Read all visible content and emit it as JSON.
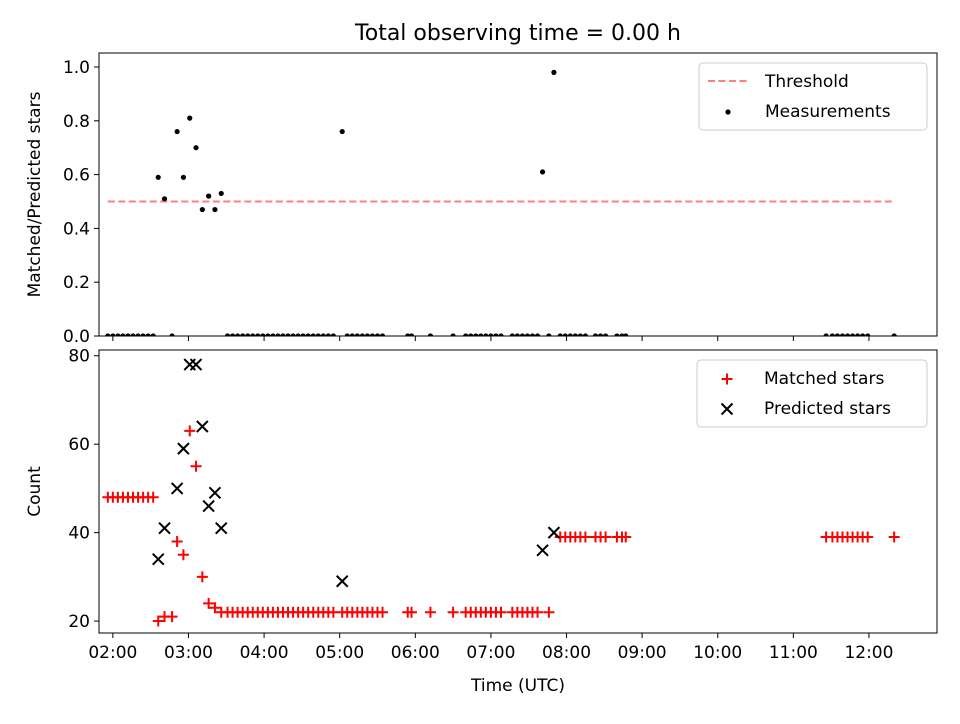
{
  "figure": {
    "title": "Total observing time = 0.00 h"
  },
  "chart_data": [
    {
      "type": "scatter",
      "ylabel": "Matched/Predicted stars",
      "ylim": [
        0.0,
        1.0
      ],
      "yticks": [
        "0.0",
        "0.2",
        "0.4",
        "0.6",
        "0.8",
        "1.0"
      ],
      "xlim": [
        "01:49",
        "12:54"
      ],
      "threshold": {
        "name": "Threshold",
        "value": 0.5,
        "x_range": [
          "01:56",
          "12:20"
        ],
        "color": "#ff7f7f"
      },
      "legend": {
        "position": "top-right"
      },
      "series": [
        {
          "name": "Measurements",
          "color": "#000000",
          "points": [
            [
              "01:56",
              0
            ],
            [
              "02:00",
              0
            ],
            [
              "02:04",
              0
            ],
            [
              "02:08",
              0
            ],
            [
              "02:12",
              0
            ],
            [
              "02:16",
              0
            ],
            [
              "02:20",
              0
            ],
            [
              "02:24",
              0
            ],
            [
              "02:28",
              0
            ],
            [
              "02:32",
              0
            ],
            [
              "02:36",
              0.59
            ],
            [
              "02:41",
              0.51
            ],
            [
              "02:47",
              0
            ],
            [
              "02:51",
              0.76
            ],
            [
              "02:56",
              0.59
            ],
            [
              "03:01",
              0.81
            ],
            [
              "03:06",
              0.7
            ],
            [
              "03:11",
              0.47
            ],
            [
              "03:16",
              0.52
            ],
            [
              "03:21",
              0.47
            ],
            [
              "03:26",
              0.53
            ],
            [
              "03:31",
              0
            ],
            [
              "03:35",
              0
            ],
            [
              "03:39",
              0
            ],
            [
              "03:43",
              0
            ],
            [
              "03:47",
              0
            ],
            [
              "03:51",
              0
            ],
            [
              "03:55",
              0
            ],
            [
              "03:59",
              0
            ],
            [
              "04:03",
              0
            ],
            [
              "04:07",
              0
            ],
            [
              "04:11",
              0
            ],
            [
              "04:15",
              0
            ],
            [
              "04:19",
              0
            ],
            [
              "04:23",
              0
            ],
            [
              "04:27",
              0
            ],
            [
              "04:31",
              0
            ],
            [
              "04:35",
              0
            ],
            [
              "04:39",
              0
            ],
            [
              "04:43",
              0
            ],
            [
              "04:47",
              0
            ],
            [
              "04:51",
              0
            ],
            [
              "04:55",
              0
            ],
            [
              "05:02",
              0.76
            ],
            [
              "05:06",
              0
            ],
            [
              "05:10",
              0
            ],
            [
              "05:14",
              0
            ],
            [
              "05:18",
              0
            ],
            [
              "05:22",
              0
            ],
            [
              "05:26",
              0
            ],
            [
              "05:30",
              0
            ],
            [
              "05:34",
              0
            ],
            [
              "05:54",
              0
            ],
            [
              "05:57",
              0
            ],
            [
              "06:12",
              0
            ],
            [
              "06:30",
              0
            ],
            [
              "06:40",
              0
            ],
            [
              "06:44",
              0
            ],
            [
              "06:48",
              0
            ],
            [
              "06:52",
              0
            ],
            [
              "06:56",
              0
            ],
            [
              "07:00",
              0
            ],
            [
              "07:04",
              0
            ],
            [
              "07:08",
              0
            ],
            [
              "07:17",
              0
            ],
            [
              "07:21",
              0
            ],
            [
              "07:25",
              0
            ],
            [
              "07:29",
              0
            ],
            [
              "07:33",
              0
            ],
            [
              "07:37",
              0
            ],
            [
              "07:41",
              0.61
            ],
            [
              "07:46",
              0
            ],
            [
              "07:50",
              0.98
            ],
            [
              "07:55",
              0
            ],
            [
              "07:59",
              0
            ],
            [
              "08:03",
              0
            ],
            [
              "08:07",
              0
            ],
            [
              "08:11",
              0
            ],
            [
              "08:15",
              0
            ],
            [
              "08:23",
              0
            ],
            [
              "08:27",
              0
            ],
            [
              "08:31",
              0
            ],
            [
              "08:40",
              0
            ],
            [
              "08:44",
              0
            ],
            [
              "08:47",
              0
            ],
            [
              "11:26",
              0
            ],
            [
              "11:31",
              0
            ],
            [
              "11:35",
              0
            ],
            [
              "11:39",
              0
            ],
            [
              "11:43",
              0
            ],
            [
              "11:47",
              0
            ],
            [
              "11:51",
              0
            ],
            [
              "11:55",
              0
            ],
            [
              "11:59",
              0
            ],
            [
              "12:20",
              0
            ]
          ]
        }
      ]
    },
    {
      "type": "scatter",
      "xlabel": "Time (UTC)",
      "ylabel": "Count",
      "ylim": [
        17.3,
        81.3
      ],
      "yticks": [
        "20",
        "40",
        "60",
        "80"
      ],
      "xlim": [
        "01:49",
        "12:54"
      ],
      "xticks": [
        "02:00",
        "03:00",
        "04:00",
        "05:00",
        "06:00",
        "07:00",
        "08:00",
        "09:00",
        "10:00",
        "11:00",
        "12:00"
      ],
      "legend": {
        "position": "top-right"
      },
      "series": [
        {
          "name": "Matched stars",
          "marker": "plus",
          "color": "#ff0000",
          "points": [
            [
              "01:56",
              48
            ],
            [
              "02:00",
              48
            ],
            [
              "02:04",
              48
            ],
            [
              "02:08",
              48
            ],
            [
              "02:12",
              48
            ],
            [
              "02:16",
              48
            ],
            [
              "02:20",
              48
            ],
            [
              "02:24",
              48
            ],
            [
              "02:28",
              48
            ],
            [
              "02:32",
              48
            ],
            [
              "02:36",
              20
            ],
            [
              "02:41",
              21
            ],
            [
              "02:47",
              21
            ],
            [
              "02:51",
              38
            ],
            [
              "02:56",
              35
            ],
            [
              "03:01",
              63
            ],
            [
              "03:06",
              55
            ],
            [
              "03:11",
              30
            ],
            [
              "03:16",
              24
            ],
            [
              "03:21",
              23
            ],
            [
              "03:26",
              22
            ],
            [
              "03:31",
              22
            ],
            [
              "03:35",
              22
            ],
            [
              "03:39",
              22
            ],
            [
              "03:43",
              22
            ],
            [
              "03:47",
              22
            ],
            [
              "03:51",
              22
            ],
            [
              "03:55",
              22
            ],
            [
              "03:59",
              22
            ],
            [
              "04:03",
              22
            ],
            [
              "04:07",
              22
            ],
            [
              "04:11",
              22
            ],
            [
              "04:15",
              22
            ],
            [
              "04:19",
              22
            ],
            [
              "04:23",
              22
            ],
            [
              "04:27",
              22
            ],
            [
              "04:31",
              22
            ],
            [
              "04:35",
              22
            ],
            [
              "04:39",
              22
            ],
            [
              "04:43",
              22
            ],
            [
              "04:47",
              22
            ],
            [
              "04:51",
              22
            ],
            [
              "04:55",
              22
            ],
            [
              "05:02",
              22
            ],
            [
              "05:06",
              22
            ],
            [
              "05:10",
              22
            ],
            [
              "05:14",
              22
            ],
            [
              "05:18",
              22
            ],
            [
              "05:22",
              22
            ],
            [
              "05:26",
              22
            ],
            [
              "05:30",
              22
            ],
            [
              "05:34",
              22
            ],
            [
              "05:54",
              22
            ],
            [
              "05:57",
              22
            ],
            [
              "06:12",
              22
            ],
            [
              "06:30",
              22
            ],
            [
              "06:40",
              22
            ],
            [
              "06:44",
              22
            ],
            [
              "06:48",
              22
            ],
            [
              "06:52",
              22
            ],
            [
              "06:56",
              22
            ],
            [
              "07:00",
              22
            ],
            [
              "07:04",
              22
            ],
            [
              "07:08",
              22
            ],
            [
              "07:17",
              22
            ],
            [
              "07:21",
              22
            ],
            [
              "07:25",
              22
            ],
            [
              "07:29",
              22
            ],
            [
              "07:33",
              22
            ],
            [
              "07:37",
              22
            ],
            [
              "07:46",
              22
            ],
            [
              "07:55",
              39
            ],
            [
              "07:59",
              39
            ],
            [
              "08:03",
              39
            ],
            [
              "08:07",
              39
            ],
            [
              "08:11",
              39
            ],
            [
              "08:15",
              39
            ],
            [
              "08:23",
              39
            ],
            [
              "08:27",
              39
            ],
            [
              "08:31",
              39
            ],
            [
              "08:40",
              39
            ],
            [
              "08:44",
              39
            ],
            [
              "08:47",
              39
            ],
            [
              "11:26",
              39
            ],
            [
              "11:31",
              39
            ],
            [
              "11:35",
              39
            ],
            [
              "11:39",
              39
            ],
            [
              "11:43",
              39
            ],
            [
              "11:47",
              39
            ],
            [
              "11:51",
              39
            ],
            [
              "11:55",
              39
            ],
            [
              "11:59",
              39
            ],
            [
              "12:20",
              39
            ]
          ]
        },
        {
          "name": "Predicted stars",
          "marker": "x",
          "color": "#000000",
          "points": [
            [
              "02:36",
              34
            ],
            [
              "02:41",
              41
            ],
            [
              "02:51",
              50
            ],
            [
              "02:56",
              59
            ],
            [
              "03:01",
              78
            ],
            [
              "03:06",
              78
            ],
            [
              "03:11",
              64
            ],
            [
              "03:16",
              46
            ],
            [
              "03:21",
              49
            ],
            [
              "03:26",
              41
            ],
            [
              "05:02",
              29
            ],
            [
              "07:41",
              36
            ],
            [
              "07:50",
              40
            ]
          ]
        }
      ]
    }
  ]
}
